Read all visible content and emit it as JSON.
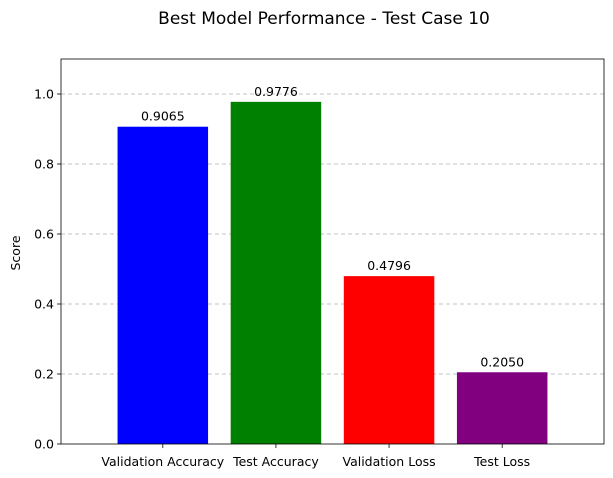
{
  "chart_data": {
    "type": "bar",
    "title": "Best Model Performance - Test Case 10",
    "xlabel": "",
    "ylabel": "Score",
    "categories": [
      "Validation Accuracy",
      "Test Accuracy",
      "Validation Loss",
      "Test Loss"
    ],
    "values": [
      0.9065,
      0.9776,
      0.4796,
      0.205
    ],
    "value_labels": [
      "0.9065",
      "0.9776",
      "0.4796",
      "0.2050"
    ],
    "colors": [
      "#0000ff",
      "#008000",
      "#ff0000",
      "#800080"
    ],
    "ylim": [
      0,
      1.1
    ],
    "yticks": [
      0.0,
      0.2,
      0.4,
      0.6,
      0.8,
      1.0
    ],
    "ytick_labels": [
      "0.0",
      "0.2",
      "0.4",
      "0.6",
      "0.8",
      "1.0"
    ],
    "grid": "y-axis dashed",
    "legend": "none"
  }
}
